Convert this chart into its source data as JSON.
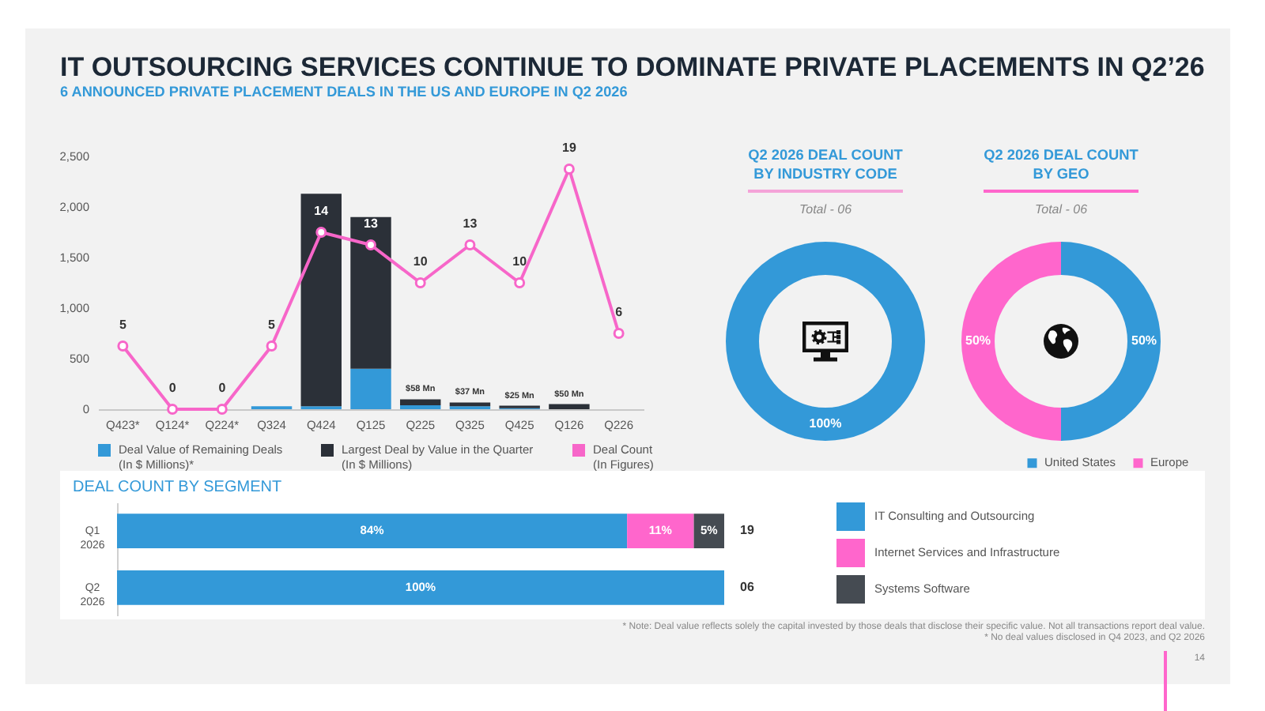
{
  "chart_data": [
    {
      "type": "bar",
      "title": "IT OUTSOURCING SERVICES CONTINUE TO DOMINATE PRIVATE PLACEMENTS IN Q2’26",
      "subtitle": "6 ANNOUNCED PRIVATE PLACEMENT DEALS IN THE US AND EUROPE IN Q2 2026",
      "categories": [
        "Q423*",
        "Q124*",
        "Q224*",
        "Q324",
        "Q424",
        "Q125",
        "Q225",
        "Q325",
        "Q425",
        "Q126",
        "Q226"
      ],
      "stacked": true,
      "ylim": [
        0,
        2500
      ],
      "yticks": [
        0,
        500,
        {
          "value": 1000,
          "label": "1,000"
        },
        {
          "value": 1500,
          "label": "1,500"
        },
        {
          "value": 2000,
          "label": "2,000"
        },
        {
          "value": 2500,
          "label": "2,500"
        }
      ],
      "legend": "bottom",
      "marker": "circle",
      "line_style": "solid",
      "series": [
        {
          "name": "Deal Value of Remaining Deals (In $ Millions)*",
          "color": "#3399d8",
          "values": [
            null,
            null,
            null,
            30,
            30,
            400,
            40,
            30,
            10,
            null,
            null
          ]
        },
        {
          "name": "Largest Deal by Value in the Quarter (In $ Millions)",
          "color": "#2b3038",
          "values": [
            null,
            null,
            null,
            null,
            2100,
            1500,
            58,
            37,
            25,
            50,
            null
          ],
          "value_labels": [
            null,
            null,
            null,
            null,
            null,
            null,
            "$58 Mn",
            "$37 Mn",
            "$25 Mn",
            "$50 Mn",
            null
          ]
        },
        {
          "name": "Deal Count (In Figures)",
          "type": "line",
          "axis": "y2",
          "color": "#f766c9",
          "values": [
            5,
            0,
            0,
            5,
            14,
            13,
            10,
            13,
            10,
            19,
            6
          ],
          "value_labels": [
            "5",
            "0",
            "0",
            "5",
            "14",
            "13",
            "10",
            "13",
            "10",
            "19",
            "6"
          ]
        }
      ],
      "annotations": [
        "* Note: Deal value reflects solely the capital invested by those deals that disclose their specific value. Not all transactions report deal value.",
        "* No deal values disclosed in Q4 2023, and Q2 2026",
        "14"
      ]
    },
    {
      "type": "donut",
      "title": "Q2 2026 DEAL COUNT BY INDUSTRY CODE",
      "subtitle": "Total - 06",
      "categories": [
        null
      ],
      "values": [
        100
      ],
      "colors": [
        "#3399d8"
      ],
      "value_labels": [
        "100%"
      ]
    },
    {
      "type": "donut",
      "title": "Q2 2026 DEAL COUNT BY GEO",
      "subtitle": "Total - 06",
      "categories": [
        "United States",
        "Europe"
      ],
      "values": [
        50,
        50
      ],
      "colors": [
        "#3399d8",
        "#ff66cc"
      ],
      "value_labels": [
        "50%",
        "50%"
      ],
      "legend": "bottom right"
    },
    {
      "type": "bar",
      "orientation": "horizontal",
      "stacked": true,
      "title": "DEAL COUNT BY SEGMENT",
      "categories": [
        "Q1 2026",
        "Q2 2026"
      ],
      "xlim": [
        0,
        100
      ],
      "tick_labels": "y",
      "legend": "right",
      "series": [
        {
          "name": "IT Consulting and Outsourcing",
          "color": "#3399d8",
          "values": [
            84,
            100
          ],
          "value_labels": [
            "84%",
            "100%"
          ]
        },
        {
          "name": "Internet Services and Infrastructure",
          "color": "#ff66cc",
          "values": [
            11,
            null
          ],
          "value_labels": [
            "11%",
            null
          ]
        },
        {
          "name": "Systems Software",
          "color": "#454b52",
          "values": [
            5,
            null
          ],
          "value_labels": [
            "5%",
            null
          ]
        }
      ],
      "annotations": [
        {
          "text": "19",
          "x": 100,
          "y": "Q1 2026"
        },
        {
          "text": "06",
          "x": 100,
          "y": "Q2 2026"
        }
      ]
    }
  ]
}
